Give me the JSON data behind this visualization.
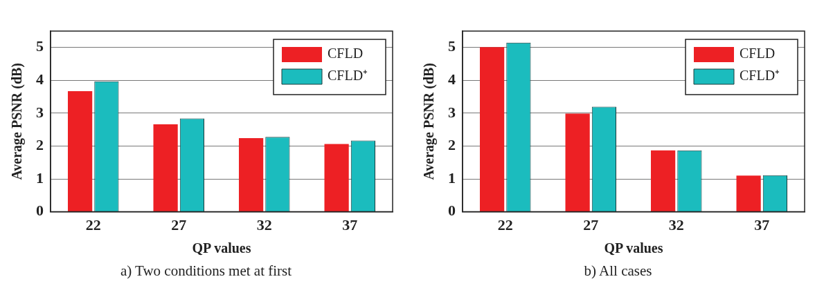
{
  "chart_data": [
    {
      "type": "bar",
      "xlabel": "QP values",
      "ylabel": "Average PSNR (dB)",
      "categories": [
        "22",
        "27",
        "32",
        "37"
      ],
      "series": [
        {
          "name": "CFLD",
          "color": "#ed2024",
          "values": [
            3.67,
            2.66,
            2.24,
            2.06
          ]
        },
        {
          "name": "CFLD⁺",
          "color": "#1bbcbe",
          "values": [
            3.97,
            2.84,
            2.28,
            2.17
          ]
        }
      ],
      "ylim": [
        0,
        5.5
      ],
      "yticks": [
        0,
        1,
        2,
        3,
        4,
        5
      ],
      "grid": "y",
      "legend": "top right",
      "annotations": [
        "a) Two conditions met at first"
      ]
    },
    {
      "type": "bar",
      "xlabel": "QP values",
      "ylabel": "Average PSNR (dB)",
      "categories": [
        "22",
        "27",
        "32",
        "37"
      ],
      "series": [
        {
          "name": "CFLD",
          "color": "#ed2024",
          "values": [
            5.01,
            2.99,
            1.87,
            1.1
          ]
        },
        {
          "name": "CFLD⁺",
          "color": "#1bbcbe",
          "values": [
            5.15,
            3.2,
            1.87,
            1.11
          ]
        }
      ],
      "ylim": [
        0,
        5.5
      ],
      "yticks": [
        0,
        1,
        2,
        3,
        4,
        5
      ],
      "grid": "y",
      "legend": "top right",
      "annotations": [
        "b) All cases"
      ]
    }
  ]
}
